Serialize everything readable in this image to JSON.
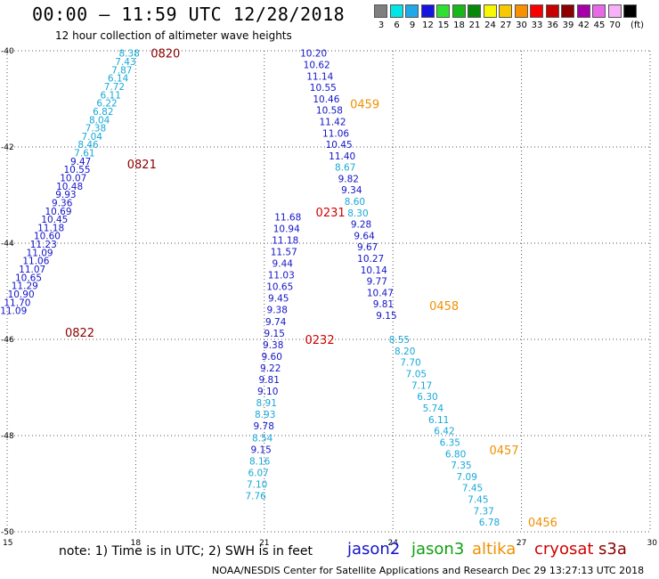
{
  "header": {
    "title": "00:00 – 11:59 UTC 12/28/2018",
    "subtitle": "12 hour collection of altimeter wave heights"
  },
  "legend": {
    "unit": "(ft)",
    "items": [
      {
        "color": "#7f7f7f",
        "label": "3"
      },
      {
        "color": "#00e5e5",
        "label": "6"
      },
      {
        "color": "#20a8e8",
        "label": "9"
      },
      {
        "color": "#1515e0",
        "label": "12"
      },
      {
        "color": "#30e030",
        "label": "15"
      },
      {
        "color": "#18b818",
        "label": "18"
      },
      {
        "color": "#088808",
        "label": "21"
      },
      {
        "color": "#f8f800",
        "label": "24"
      },
      {
        "color": "#f8c800",
        "label": "27"
      },
      {
        "color": "#f89000",
        "label": "30"
      },
      {
        "color": "#f80000",
        "label": "33"
      },
      {
        "color": "#c80000",
        "label": "36"
      },
      {
        "color": "#8c0000",
        "label": "39"
      },
      {
        "color": "#a800a8",
        "label": "42"
      },
      {
        "color": "#e868e8",
        "label": "45"
      },
      {
        "color": "#f8b0f8",
        "label": "70"
      },
      {
        "color": "#000000",
        "label": ""
      }
    ]
  },
  "map": {
    "lat_labels": [
      "-40",
      "-42",
      "-44",
      "-46",
      "-48",
      "-50"
    ],
    "lon_labels": [
      "15",
      "18",
      "21",
      "24",
      "27",
      "30"
    ],
    "lat_range": [
      -50,
      -40
    ],
    "lon_range": [
      15,
      30
    ],
    "colors": {
      "light": "#17a8d8",
      "dark": "#1414c8",
      "altika": "#f09000",
      "cryosat": "#d00000",
      "s3a": "#8c0000"
    }
  },
  "tracks": [
    {
      "name": "track-west",
      "lon_top": 17.85,
      "lon_bottom": 15.15,
      "lat_top": -40.05,
      "lat_bottom": -45.4,
      "labels": [
        {
          "v": "8.38",
          "c": "light"
        },
        {
          "v": "7.43",
          "c": "light"
        },
        {
          "v": "7.87",
          "c": "light"
        },
        {
          "v": "6.14",
          "c": "light"
        },
        {
          "v": "7.72",
          "c": "light"
        },
        {
          "v": "6.11",
          "c": "light"
        },
        {
          "v": "6.22",
          "c": "light"
        },
        {
          "v": "6.82",
          "c": "light"
        },
        {
          "v": "8.04",
          "c": "light"
        },
        {
          "v": "7.38",
          "c": "light"
        },
        {
          "v": "7.04",
          "c": "light"
        },
        {
          "v": "8.46",
          "c": "light"
        },
        {
          "v": "7.61",
          "c": "light"
        },
        {
          "v": "9.47",
          "c": "dark"
        },
        {
          "v": "10.55",
          "c": "dark"
        },
        {
          "v": "10.07",
          "c": "dark"
        },
        {
          "v": "10.48",
          "c": "dark"
        },
        {
          "v": "9.93",
          "c": "dark"
        },
        {
          "v": "9.36",
          "c": "dark"
        },
        {
          "v": "10.69",
          "c": "dark"
        },
        {
          "v": "10.45",
          "c": "dark"
        },
        {
          "v": "11.18",
          "c": "dark"
        },
        {
          "v": "10.60",
          "c": "dark"
        },
        {
          "v": "11.23",
          "c": "dark"
        },
        {
          "v": "11.09",
          "c": "dark"
        },
        {
          "v": "11.06",
          "c": "dark"
        },
        {
          "v": "11.07",
          "c": "dark"
        },
        {
          "v": "10.65",
          "c": "dark"
        },
        {
          "v": "11.29",
          "c": "dark"
        },
        {
          "v": "10.90",
          "c": "dark"
        },
        {
          "v": "11.70",
          "c": "dark"
        },
        {
          "v": "11.09",
          "c": "dark"
        }
      ]
    },
    {
      "name": "track-north-center",
      "lon_top": 22.15,
      "lon_bottom": 23.85,
      "lat_top": -40.05,
      "lat_bottom": -45.5,
      "labels": [
        {
          "v": "10.20",
          "c": "dark"
        },
        {
          "v": "10.62",
          "c": "dark"
        },
        {
          "v": "11.14",
          "c": "dark"
        },
        {
          "v": "10.55",
          "c": "dark"
        },
        {
          "v": "10.46",
          "c": "dark"
        },
        {
          "v": "10.58",
          "c": "dark"
        },
        {
          "v": "11.42",
          "c": "dark"
        },
        {
          "v": "11.06",
          "c": "dark"
        },
        {
          "v": "10.45",
          "c": "dark"
        },
        {
          "v": "11.40",
          "c": "dark"
        },
        {
          "v": "8.67",
          "c": "light"
        },
        {
          "v": "9.82",
          "c": "dark"
        },
        {
          "v": "9.34",
          "c": "dark"
        },
        {
          "v": "8.60",
          "c": "light"
        },
        {
          "v": "8.30",
          "c": "light"
        },
        {
          "v": "9.28",
          "c": "dark"
        },
        {
          "v": "9.64",
          "c": "dark"
        },
        {
          "v": "9.67",
          "c": "dark"
        },
        {
          "v": "10.27",
          "c": "dark"
        },
        {
          "v": "10.14",
          "c": "dark"
        },
        {
          "v": "9.77",
          "c": "dark"
        },
        {
          "v": "10.47",
          "c": "dark"
        },
        {
          "v": "9.81",
          "c": "dark"
        },
        {
          "v": "9.15",
          "c": "dark"
        }
      ]
    },
    {
      "name": "track-center",
      "lon_top": 21.55,
      "lon_bottom": 20.8,
      "lat_top": -43.45,
      "lat_bottom": -49.25,
      "labels": [
        {
          "v": "11.68",
          "c": "dark"
        },
        {
          "v": "10.94",
          "c": "dark"
        },
        {
          "v": "11.18",
          "c": "dark"
        },
        {
          "v": "11.57",
          "c": "dark"
        },
        {
          "v": "9.44",
          "c": "dark"
        },
        {
          "v": "11.03",
          "c": "dark"
        },
        {
          "v": "10.65",
          "c": "dark"
        },
        {
          "v": "9.45",
          "c": "dark"
        },
        {
          "v": "9.38",
          "c": "dark"
        },
        {
          "v": "9.74",
          "c": "dark"
        },
        {
          "v": "9.15",
          "c": "dark"
        },
        {
          "v": "9.38",
          "c": "dark"
        },
        {
          "v": "9.60",
          "c": "dark"
        },
        {
          "v": "9.22",
          "c": "dark"
        },
        {
          "v": "9.81",
          "c": "dark"
        },
        {
          "v": "9.10",
          "c": "dark"
        },
        {
          "v": "8.91",
          "c": "light"
        },
        {
          "v": "8.93",
          "c": "light"
        },
        {
          "v": "9.78",
          "c": "dark"
        },
        {
          "v": "8.54",
          "c": "light"
        },
        {
          "v": "9.15",
          "c": "dark"
        },
        {
          "v": "8.16",
          "c": "light"
        },
        {
          "v": "6.07",
          "c": "light"
        },
        {
          "v": "7.10",
          "c": "light"
        },
        {
          "v": "7.76",
          "c": "light"
        }
      ]
    },
    {
      "name": "track-south-east",
      "lon_top": 24.15,
      "lon_bottom": 26.25,
      "lat_top": -46.0,
      "lat_bottom": -49.8,
      "labels": [
        {
          "v": "8.55",
          "c": "light"
        },
        {
          "v": "8.20",
          "c": "light"
        },
        {
          "v": "7.70",
          "c": "light"
        },
        {
          "v": "7.05",
          "c": "light"
        },
        {
          "v": "7.17",
          "c": "light"
        },
        {
          "v": "6.30",
          "c": "light"
        },
        {
          "v": "5.74",
          "c": "light"
        },
        {
          "v": "6.11",
          "c": "light"
        },
        {
          "v": "6.42",
          "c": "light"
        },
        {
          "v": "6.35",
          "c": "light"
        },
        {
          "v": "6.80",
          "c": "light"
        },
        {
          "v": "7.35",
          "c": "light"
        },
        {
          "v": "7.09",
          "c": "light"
        },
        {
          "v": "7.45",
          "c": "light"
        },
        {
          "v": "7.45",
          "c": "light"
        },
        {
          "v": "7.37",
          "c": "light"
        },
        {
          "v": "6.78",
          "c": "light"
        }
      ]
    }
  ],
  "time_labels": [
    {
      "t": "0820",
      "c": "s3a",
      "lon": 18.35,
      "lat": -40.05
    },
    {
      "t": "0821",
      "c": "s3a",
      "lon": 17.8,
      "lat": -42.35
    },
    {
      "t": "0822",
      "c": "s3a",
      "lon": 16.35,
      "lat": -45.85
    },
    {
      "t": "0459",
      "c": "altika",
      "lon": 23.0,
      "lat": -41.1
    },
    {
      "t": "0231",
      "c": "cryosat",
      "lon": 22.2,
      "lat": -43.35
    },
    {
      "t": "0458",
      "c": "altika",
      "lon": 24.85,
      "lat": -45.3
    },
    {
      "t": "0232",
      "c": "cryosat",
      "lon": 21.95,
      "lat": -46.0
    },
    {
      "t": "0457",
      "c": "altika",
      "lon": 26.25,
      "lat": -48.3
    },
    {
      "t": "0456",
      "c": "altika",
      "lon": 27.15,
      "lat": -49.8
    }
  ],
  "note": "note:  1) Time is in UTC;  2) SWH is in feet",
  "satellites": [
    {
      "name": "jason2",
      "color": "#1414c8"
    },
    {
      "name": "jason3",
      "color": "#10a010"
    },
    {
      "name": "altika",
      "color": "#f09000"
    },
    {
      "name": "cryosat",
      "color": "#d00000"
    },
    {
      "name": "s3a",
      "color": "#8c0000"
    }
  ],
  "footer": "NOAA/NESDIS Center for Satellite Applications and Research    Dec 29 13:27:13 UTC 2018"
}
